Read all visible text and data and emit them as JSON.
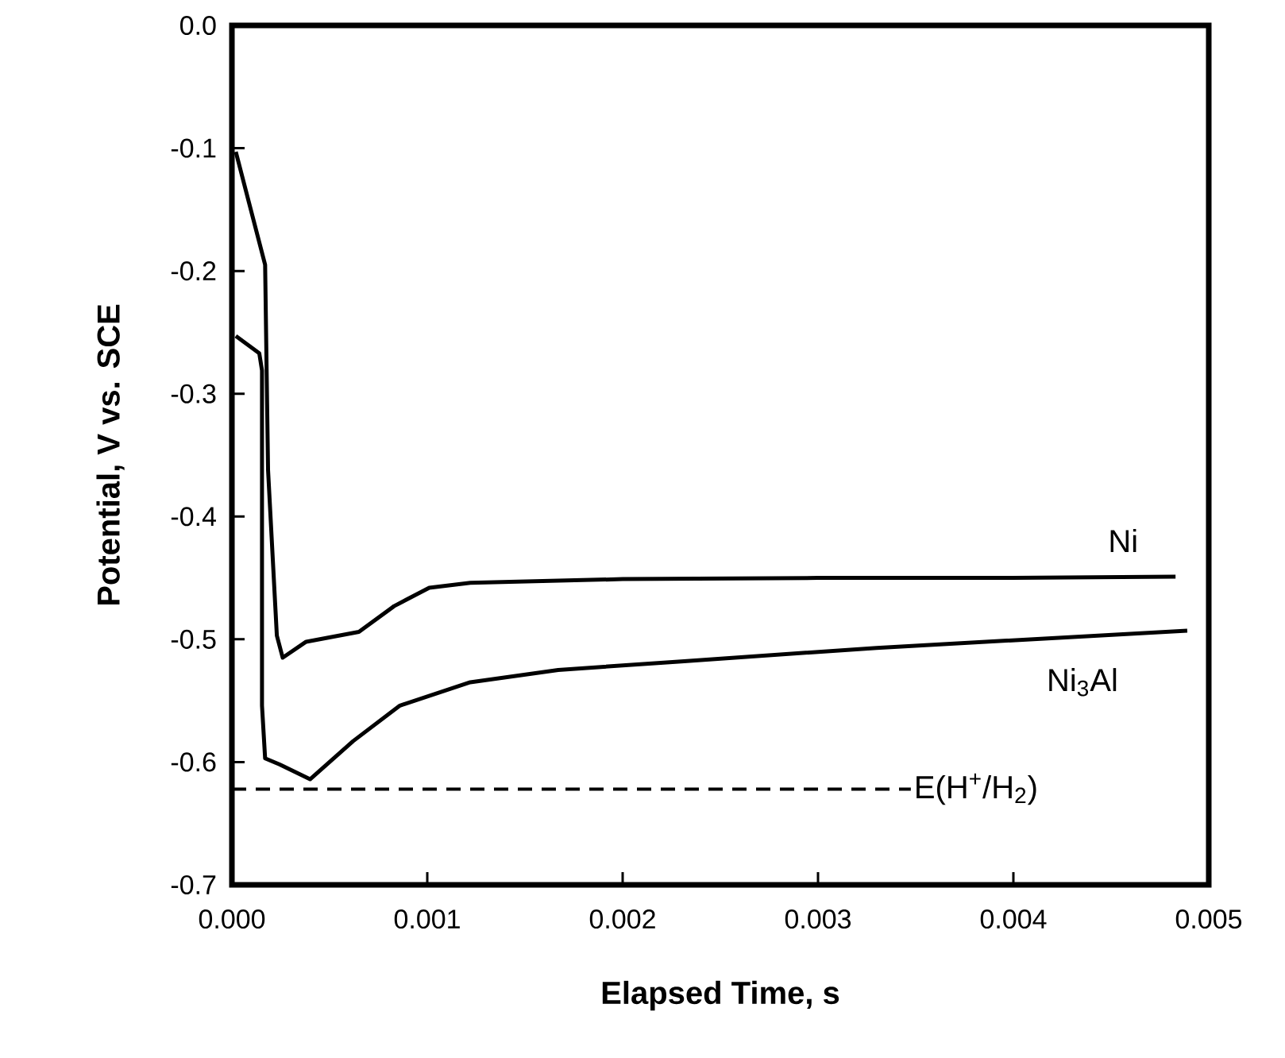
{
  "chart_data": {
    "type": "line",
    "xlabel": "Elapsed Time, s",
    "ylabel": "Potential, V vs. SCE",
    "xlim": [
      0,
      0.005
    ],
    "ylim": [
      -0.7,
      0
    ],
    "xticks": [
      {
        "value": 0,
        "label": "0.000"
      },
      {
        "value": 0.001,
        "label": "0.001"
      },
      {
        "value": 0.002,
        "label": "0.002"
      },
      {
        "value": 0.003,
        "label": "0.003"
      },
      {
        "value": 0.004,
        "label": "0.004"
      },
      {
        "value": 0.005,
        "label": "0.005"
      }
    ],
    "yticks": [
      {
        "value": -0.7,
        "label": "-0.7"
      },
      {
        "value": -0.6,
        "label": "-0.6"
      },
      {
        "value": -0.5,
        "label": "-0.5"
      },
      {
        "value": -0.4,
        "label": "-0.4"
      },
      {
        "value": -0.3,
        "label": "-0.3"
      },
      {
        "value": -0.2,
        "label": "-0.2"
      },
      {
        "value": -0.1,
        "label": "-0.1"
      },
      {
        "value": 0,
        "label": "0.0"
      }
    ],
    "marker": "none",
    "line_style": "solid",
    "series": [
      {
        "name": "Ni",
        "color": "#000000",
        "x": [
          2e-05,
          0.00017,
          0.000185,
          0.00023,
          0.00026,
          0.00038,
          0.00065,
          0.00083,
          0.00101,
          0.00122,
          0.002,
          0.003,
          0.004,
          0.00483
        ],
        "values": [
          -0.103,
          -0.195,
          -0.362,
          -0.497,
          -0.515,
          -0.502,
          -0.494,
          -0.473,
          -0.458,
          -0.454,
          -0.451,
          -0.45,
          -0.45,
          -0.449
        ]
      },
      {
        "name": "Ni$_{3}$Al",
        "color": "#000000",
        "x": [
          2e-05,
          0.00014,
          0.000154,
          0.000154,
          0.00017,
          0.000245,
          0.0004,
          0.00062,
          0.00086,
          0.00122,
          0.00167,
          0.0023,
          0.0033,
          0.00489
        ],
        "values": [
          -0.253,
          -0.267,
          -0.281,
          -0.554,
          -0.597,
          -0.602,
          -0.614,
          -0.583,
          -0.554,
          -0.535,
          -0.525,
          -0.518,
          -0.507,
          -0.493
        ]
      }
    ],
    "ref_lines": [
      {
        "axis": "y",
        "value": -0.622,
        "label": "E(H$^{+}$/H$_{2}$)",
        "line_style": "dashed",
        "color": "#000000"
      }
    ]
  }
}
